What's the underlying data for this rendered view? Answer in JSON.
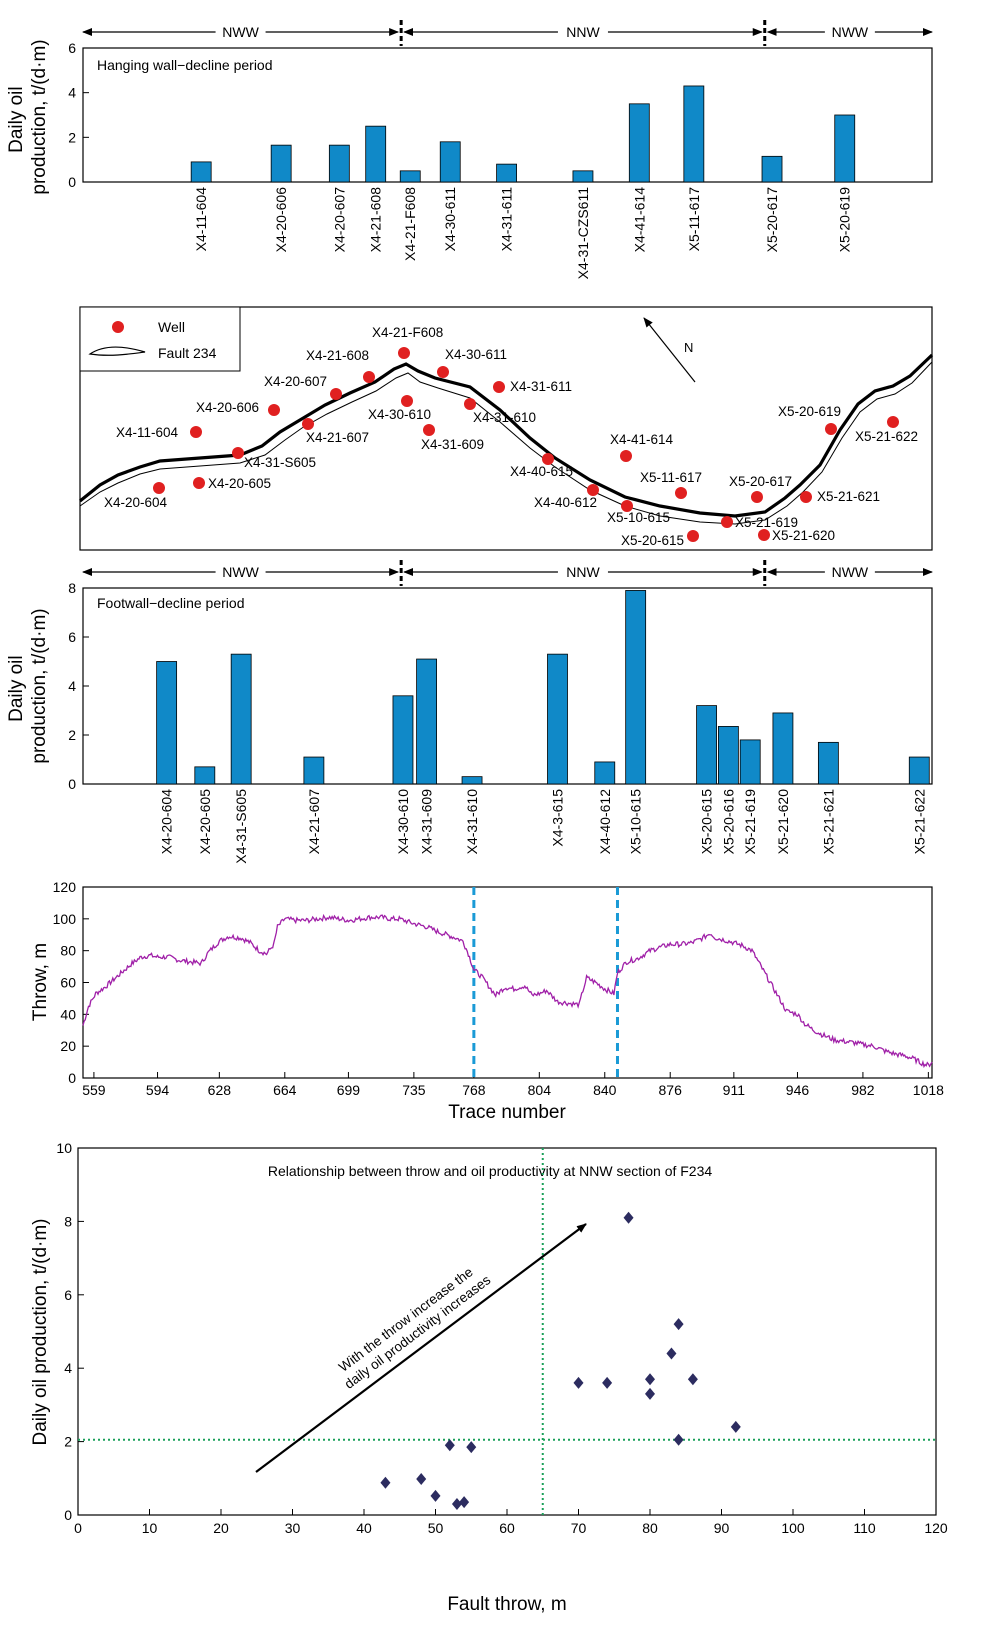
{
  "strike_bands": [
    {
      "label": "NWW",
      "from": 555,
      "to": 728
    },
    {
      "label": "NNW",
      "from": 728,
      "to": 928
    },
    {
      "label": "NWW",
      "from": 928,
      "to": 1020
    }
  ],
  "hanging_wall": {
    "title": "Hanging wall−decline period",
    "ylabel": "Daily oil production, t/(d·m)",
    "ylim": [
      0,
      6
    ],
    "yticks": [
      0,
      2,
      4,
      6
    ],
    "bars": [
      {
        "name": "X4-11-604",
        "x": 618,
        "value": 0.9
      },
      {
        "name": "X4-20-606",
        "x": 662,
        "value": 1.65
      },
      {
        "name": "X4-20-607",
        "x": 694,
        "value": 1.65
      },
      {
        "name": "X4-21-608",
        "x": 714,
        "value": 2.5
      },
      {
        "name": "X4-21-F608",
        "x": 733,
        "value": 0.5
      },
      {
        "name": "X4-30-611",
        "x": 755,
        "value": 1.8
      },
      {
        "name": "X4-31-611",
        "x": 786,
        "value": 0.8
      },
      {
        "name": "X4-31-CZS611",
        "x": 828,
        "value": 0.5
      },
      {
        "name": "X4-41-614",
        "x": 859,
        "value": 3.5
      },
      {
        "name": "X5-11-617",
        "x": 889,
        "value": 4.3
      },
      {
        "name": "X5-20-617",
        "x": 932,
        "value": 1.15
      },
      {
        "name": "X5-20-619",
        "x": 972,
        "value": 3.0
      }
    ]
  },
  "map": {
    "legend": {
      "well": "Well",
      "fault": "Fault 234"
    },
    "north_label": "N",
    "wells": [
      {
        "name": "X4-11-604",
        "x": 196,
        "y": 432,
        "lx": 116,
        "ly": 437
      },
      {
        "name": "X4-20-606",
        "x": 274,
        "y": 410,
        "lx": 196,
        "ly": 412
      },
      {
        "name": "X4-20-607",
        "x": 336,
        "y": 394,
        "lx": 264,
        "ly": 386
      },
      {
        "name": "X4-21-608",
        "x": 369,
        "y": 377,
        "lx": 306,
        "ly": 360
      },
      {
        "name": "X4-21-F608",
        "x": 404,
        "y": 353,
        "lx": 372,
        "ly": 337
      },
      {
        "name": "X4-30-611",
        "x": 443,
        "y": 372,
        "lx": 445,
        "ly": 359
      },
      {
        "name": "X4-31-611",
        "x": 499,
        "y": 387,
        "lx": 510,
        "ly": 391
      },
      {
        "name": "X4-30-610",
        "x": 407,
        "y": 401,
        "lx": 368,
        "ly": 419
      },
      {
        "name": "X4-31-610",
        "x": 470,
        "y": 404,
        "lx": 473,
        "ly": 422
      },
      {
        "name": "X4-31-609",
        "x": 429,
        "y": 430,
        "lx": 421,
        "ly": 449
      },
      {
        "name": "X4-21-607",
        "x": 308,
        "y": 424,
        "lx": 306,
        "ly": 442
      },
      {
        "name": "X4-31-S605",
        "x": 238,
        "y": 453,
        "lx": 244,
        "ly": 467
      },
      {
        "name": "X4-20-605",
        "x": 199,
        "y": 483,
        "lx": 208,
        "ly": 488
      },
      {
        "name": "X4-20-604",
        "x": 159,
        "y": 488,
        "lx": 104,
        "ly": 507
      },
      {
        "name": "X4-40-615",
        "x": 548,
        "y": 459,
        "lx": 510,
        "ly": 476
      },
      {
        "name": "X4-41-614",
        "x": 626,
        "y": 456,
        "lx": 610,
        "ly": 444
      },
      {
        "name": "X4-40-612",
        "x": 593,
        "y": 490,
        "lx": 534,
        "ly": 507
      },
      {
        "name": "X5-11-617",
        "x": 681,
        "y": 493,
        "lx": 640,
        "ly": 482
      },
      {
        "name": "X5-10-615",
        "x": 627,
        "y": 506,
        "lx": 607,
        "ly": 522
      },
      {
        "name": "X5-20-615",
        "x": 693,
        "y": 536,
        "lx": 621,
        "ly": 545
      },
      {
        "name": "X5-20-617",
        "x": 757,
        "y": 497,
        "lx": 729,
        "ly": 486
      },
      {
        "name": "X5-21-619",
        "x": 727,
        "y": 522,
        "lx": 735,
        "ly": 527
      },
      {
        "name": "X5-21-620",
        "x": 764,
        "y": 535,
        "lx": 772,
        "ly": 540
      },
      {
        "name": "X5-21-621",
        "x": 806,
        "y": 497,
        "lx": 817,
        "ly": 501
      },
      {
        "name": "X5-20-619",
        "x": 831,
        "y": 429,
        "lx": 778,
        "ly": 416
      },
      {
        "name": "X5-21-622",
        "x": 893,
        "y": 422,
        "lx": 855,
        "ly": 441
      }
    ]
  },
  "footwall": {
    "title": "Footwall−decline period",
    "ylabel": "Daily oil production, t/(d·m)",
    "ylim": [
      0,
      8
    ],
    "yticks": [
      0,
      2,
      4,
      6,
      8
    ],
    "bars": [
      {
        "name": "X4-20-604",
        "x": 599,
        "value": 5.0
      },
      {
        "name": "X4-20-605",
        "x": 620,
        "value": 0.7
      },
      {
        "name": "X4-31-S605",
        "x": 640,
        "value": 5.3
      },
      {
        "name": "X4-21-607",
        "x": 680,
        "value": 1.1
      },
      {
        "name": "X4-30-610",
        "x": 729,
        "value": 3.6
      },
      {
        "name": "X4-31-609",
        "x": 742,
        "value": 5.1
      },
      {
        "name": "X4-31-610",
        "x": 767,
        "value": 0.3
      },
      {
        "name": "X4-3-615",
        "x": 814,
        "value": 5.3
      },
      {
        "name": "X4-40-612",
        "x": 840,
        "value": 0.9
      },
      {
        "name": "X5-10-615",
        "x": 857,
        "value": 7.9
      },
      {
        "name": "X5-20-615",
        "x": 896,
        "value": 3.2
      },
      {
        "name": "X5-20-616",
        "x": 908,
        "value": 2.35
      },
      {
        "name": "X5-21-619",
        "x": 920,
        "value": 1.8
      },
      {
        "name": "X5-21-620",
        "x": 938,
        "value": 2.9
      },
      {
        "name": "X5-21-621",
        "x": 963,
        "value": 1.7
      },
      {
        "name": "X5-21-622",
        "x": 1013,
        "value": 1.1
      }
    ]
  },
  "chart_data": [
    {
      "type": "line",
      "xlabel": "Trace number",
      "ylabel": "Throw, m",
      "xlim": [
        553,
        1020
      ],
      "ylim": [
        0,
        120
      ],
      "xticks": [
        559,
        594,
        628,
        664,
        699,
        735,
        768,
        804,
        840,
        876,
        911,
        946,
        982,
        1018
      ],
      "yticks": [
        0,
        20,
        40,
        60,
        80,
        100,
        120
      ],
      "vlines": [
        768,
        847
      ],
      "x": [
        553,
        556,
        560,
        565,
        570,
        575,
        580,
        585,
        590,
        594,
        600,
        606,
        612,
        618,
        622,
        628,
        633,
        640,
        645,
        650,
        654,
        658,
        660,
        664,
        670,
        676,
        682,
        688,
        694,
        699,
        705,
        711,
        717,
        722,
        727,
        735,
        742,
        748,
        753,
        758,
        762,
        765,
        768,
        772,
        776,
        780,
        785,
        790,
        796,
        800,
        804,
        808,
        814,
        820,
        826,
        828,
        830,
        835,
        840,
        845,
        847,
        852,
        858,
        865,
        870,
        876,
        882,
        888,
        894,
        898,
        901,
        905,
        911,
        916,
        921,
        926,
        931,
        936,
        940,
        946,
        950,
        955,
        960,
        966,
        972,
        978,
        982,
        988,
        994,
        1000,
        1005,
        1010,
        1015,
        1018,
        1020
      ],
      "y": [
        33,
        45,
        53,
        57,
        62,
        67,
        72,
        76,
        77,
        76,
        76,
        74,
        73,
        72,
        79,
        86,
        89,
        88,
        85,
        80,
        78,
        84,
        95,
        100,
        99,
        99,
        100,
        101,
        100,
        99,
        100,
        101,
        101,
        100,
        100,
        97,
        95,
        92,
        90,
        88,
        86,
        78,
        68,
        64,
        58,
        52,
        57,
        56,
        58,
        52,
        53,
        55,
        48,
        47,
        46,
        55,
        63,
        60,
        56,
        53,
        66,
        73,
        75,
        80,
        82,
        84,
        84,
        85,
        88,
        91,
        88,
        87,
        85,
        83,
        80,
        70,
        60,
        50,
        42,
        40,
        34,
        30,
        27,
        24,
        23,
        22,
        21,
        20,
        17,
        15,
        14,
        12,
        9,
        8,
        10
      ]
    },
    {
      "type": "scatter",
      "title": "Relationship between throw and oil productivity at NNW section of F234",
      "xlabel": "Fault throw, m",
      "ylabel": "Daily oil production, t/(d·m)",
      "xlim": [
        0,
        120
      ],
      "ylim": [
        0,
        10
      ],
      "xticks": [
        0,
        10,
        20,
        30,
        40,
        50,
        60,
        70,
        80,
        90,
        100,
        110,
        120
      ],
      "yticks": [
        0,
        2,
        4,
        6,
        8,
        10
      ],
      "hline": 2.05,
      "vline": 65,
      "annotation": "With the throw increase the daily oil productivity increases",
      "annotation_lines": [
        "With the throw increase the",
        "daily oil productivity increases"
      ],
      "points": [
        {
          "x": 43,
          "y": 0.88
        },
        {
          "x": 48,
          "y": 0.98
        },
        {
          "x": 50,
          "y": 0.52
        },
        {
          "x": 52,
          "y": 1.9
        },
        {
          "x": 53,
          "y": 0.3
        },
        {
          "x": 54,
          "y": 0.35
        },
        {
          "x": 55,
          "y": 1.85
        },
        {
          "x": 70,
          "y": 3.6
        },
        {
          "x": 74,
          "y": 3.6
        },
        {
          "x": 77,
          "y": 8.1
        },
        {
          "x": 80,
          "y": 3.7
        },
        {
          "x": 80,
          "y": 3.3
        },
        {
          "x": 83,
          "y": 4.4
        },
        {
          "x": 84,
          "y": 5.2
        },
        {
          "x": 84,
          "y": 2.05
        },
        {
          "x": 86,
          "y": 3.7
        },
        {
          "x": 92,
          "y": 2.4
        }
      ]
    }
  ]
}
